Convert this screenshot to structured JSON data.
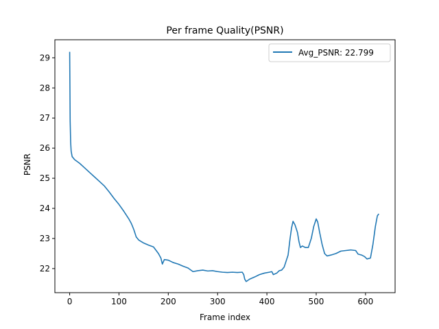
{
  "chart_data": {
    "type": "line",
    "title": "Per frame Quality(PSNR)",
    "xlabel": "Frame index",
    "ylabel": "PSNR",
    "xlim": [
      -30,
      660
    ],
    "ylim": [
      21.2,
      29.6
    ],
    "xticks": [
      0,
      100,
      200,
      300,
      400,
      500,
      600
    ],
    "yticks": [
      22,
      23,
      24,
      25,
      26,
      27,
      28,
      29
    ],
    "grid": false,
    "legend_position": "upper right",
    "series": [
      {
        "name": "Avg_PSNR: 22.799",
        "color": "#1f77b4",
        "points": [
          [
            0,
            29.2
          ],
          [
            1,
            26.9
          ],
          [
            2,
            26.2
          ],
          [
            3,
            25.9
          ],
          [
            5,
            25.72
          ],
          [
            10,
            25.62
          ],
          [
            20,
            25.5
          ],
          [
            30,
            25.35
          ],
          [
            40,
            25.2
          ],
          [
            50,
            25.05
          ],
          [
            60,
            24.9
          ],
          [
            70,
            24.75
          ],
          [
            80,
            24.55
          ],
          [
            90,
            24.33
          ],
          [
            100,
            24.13
          ],
          [
            110,
            23.9
          ],
          [
            120,
            23.65
          ],
          [
            125,
            23.5
          ],
          [
            130,
            23.3
          ],
          [
            135,
            23.05
          ],
          [
            140,
            22.95
          ],
          [
            150,
            22.85
          ],
          [
            160,
            22.78
          ],
          [
            170,
            22.72
          ],
          [
            180,
            22.5
          ],
          [
            185,
            22.35
          ],
          [
            188,
            22.15
          ],
          [
            192,
            22.3
          ],
          [
            200,
            22.28
          ],
          [
            210,
            22.2
          ],
          [
            220,
            22.15
          ],
          [
            230,
            22.08
          ],
          [
            240,
            22.02
          ],
          [
            250,
            21.9
          ],
          [
            260,
            21.93
          ],
          [
            270,
            21.95
          ],
          [
            280,
            21.92
          ],
          [
            290,
            21.93
          ],
          [
            300,
            21.9
          ],
          [
            310,
            21.88
          ],
          [
            320,
            21.87
          ],
          [
            330,
            21.88
          ],
          [
            340,
            21.87
          ],
          [
            350,
            21.88
          ],
          [
            353,
            21.8
          ],
          [
            355,
            21.65
          ],
          [
            358,
            21.57
          ],
          [
            365,
            21.65
          ],
          [
            375,
            21.72
          ],
          [
            385,
            21.8
          ],
          [
            395,
            21.85
          ],
          [
            405,
            21.88
          ],
          [
            410,
            21.9
          ],
          [
            413,
            21.8
          ],
          [
            420,
            21.85
          ],
          [
            425,
            21.93
          ],
          [
            430,
            21.95
          ],
          [
            435,
            22.05
          ],
          [
            440,
            22.3
          ],
          [
            443,
            22.45
          ],
          [
            447,
            23.0
          ],
          [
            450,
            23.35
          ],
          [
            453,
            23.57
          ],
          [
            457,
            23.45
          ],
          [
            462,
            23.2
          ],
          [
            465,
            22.9
          ],
          [
            468,
            22.7
          ],
          [
            472,
            22.75
          ],
          [
            478,
            22.7
          ],
          [
            484,
            22.7
          ],
          [
            490,
            23.0
          ],
          [
            495,
            23.4
          ],
          [
            500,
            23.65
          ],
          [
            503,
            23.55
          ],
          [
            507,
            23.2
          ],
          [
            512,
            22.8
          ],
          [
            517,
            22.5
          ],
          [
            522,
            22.42
          ],
          [
            530,
            22.45
          ],
          [
            540,
            22.5
          ],
          [
            550,
            22.58
          ],
          [
            560,
            22.6
          ],
          [
            570,
            22.62
          ],
          [
            580,
            22.6
          ],
          [
            585,
            22.48
          ],
          [
            592,
            22.45
          ],
          [
            598,
            22.4
          ],
          [
            603,
            22.32
          ],
          [
            610,
            22.35
          ],
          [
            615,
            22.8
          ],
          [
            620,
            23.4
          ],
          [
            624,
            23.75
          ],
          [
            627,
            23.82
          ]
        ]
      }
    ]
  }
}
